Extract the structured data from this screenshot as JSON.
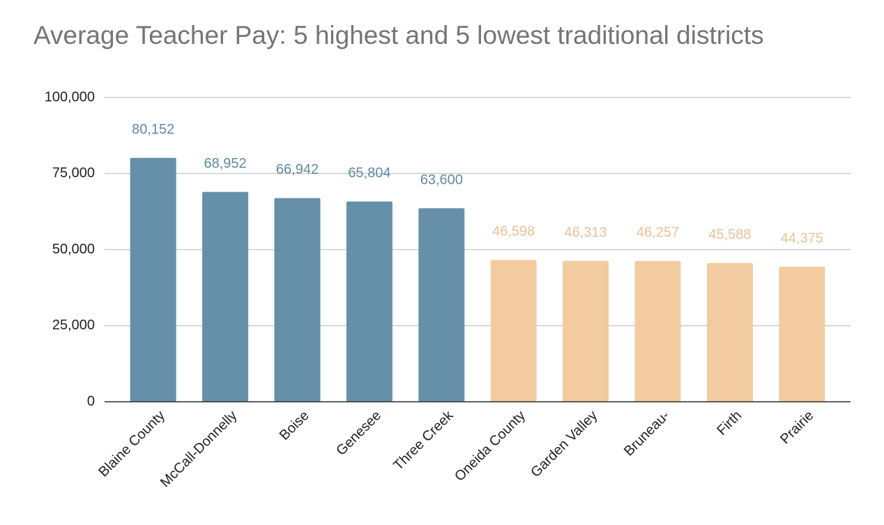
{
  "chart_data": {
    "type": "bar",
    "title": "Average Teacher Pay: 5 highest and 5 lowest traditional districts",
    "categories": [
      "Blaine County",
      "McCall-Donnelly",
      "Boise",
      "Genesee",
      "Three Creek",
      "Oneida County",
      "Garden Valley",
      "Bruneau-",
      "Firth",
      "Prairie"
    ],
    "values": [
      80152,
      68952,
      66942,
      65804,
      63600,
      46598,
      46313,
      46257,
      45588,
      44375
    ],
    "value_labels": [
      "80,152",
      "68,952",
      "66,942",
      "65,804",
      "63,600",
      "46,598",
      "46,313",
      "46,257",
      "45,588",
      "44,375"
    ],
    "colors": [
      "#6690aa",
      "#6690aa",
      "#6690aa",
      "#6690aa",
      "#6690aa",
      "#f2cca0",
      "#f2cca0",
      "#f2cca0",
      "#f2cca0",
      "#f2cca0"
    ],
    "ylim": [
      0,
      100000
    ],
    "yticks": [
      0,
      {
        "value": 25000,
        "label": "25,000"
      },
      {
        "value": 50000,
        "label": "50,000"
      },
      {
        "value": 75000,
        "label": "75,000"
      },
      {
        "value": 100000,
        "label": "100,000"
      }
    ],
    "grid": true
  }
}
